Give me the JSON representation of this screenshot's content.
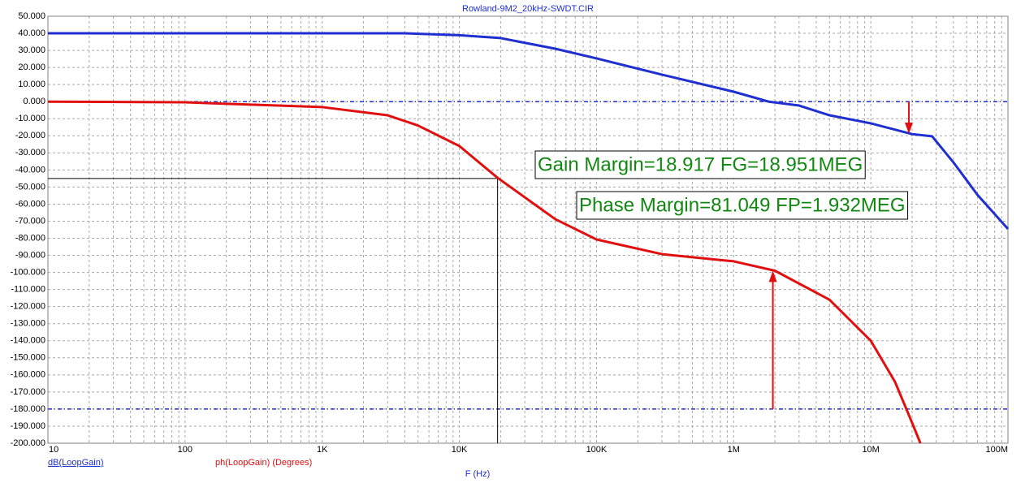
{
  "chart_data": {
    "type": "line",
    "title": "Rowland-9M2_20kHz-SWDT.CIR",
    "x_label": "F (Hz)",
    "log_x": true,
    "grid": true,
    "minor_grid": true,
    "xlim": [
      10,
      100000000
    ],
    "xticks": [
      10,
      100,
      {
        "value": 1000,
        "label": "1K"
      },
      {
        "value": 10000,
        "label": "10K"
      },
      {
        "value": 100000,
        "label": "100K"
      },
      {
        "value": 1000000,
        "label": "1M"
      },
      {
        "value": 10000000,
        "label": "10M"
      },
      {
        "value": 100000000,
        "label": "100M"
      }
    ],
    "ylim": [
      -200,
      50
    ],
    "yticks": [
      {
        "value": 50,
        "label": "50.000"
      },
      {
        "value": 40,
        "label": "40.000"
      },
      {
        "value": 30,
        "label": "30.000"
      },
      {
        "value": 20,
        "label": "20.000"
      },
      {
        "value": 10,
        "label": "10.000"
      },
      {
        "value": 0,
        "label": "0.000"
      },
      {
        "value": -10,
        "label": "-10.000"
      },
      {
        "value": -20,
        "label": "-20.000"
      },
      {
        "value": -30,
        "label": "-30.000"
      },
      {
        "value": -40,
        "label": "-40.000"
      },
      {
        "value": -50,
        "label": "-50.000"
      },
      {
        "value": -60,
        "label": "-60.000"
      },
      {
        "value": -70,
        "label": "-70.000"
      },
      {
        "value": -80,
        "label": "-80.000"
      },
      {
        "value": -90,
        "label": "-90.000"
      },
      {
        "value": -100,
        "label": "-100.000"
      },
      {
        "value": -110,
        "label": "-110.000"
      },
      {
        "value": -120,
        "label": "-120.000"
      },
      {
        "value": -130,
        "label": "-130.000"
      },
      {
        "value": -140,
        "label": "-140.000"
      },
      {
        "value": -150,
        "label": "-150.000"
      },
      {
        "value": -160,
        "label": "-160.000"
      },
      {
        "value": -170,
        "label": "-170.000"
      },
      {
        "value": -180,
        "label": "-180.000"
      },
      {
        "value": -190,
        "label": "-190.000"
      },
      {
        "value": -200,
        "label": "-200.000"
      }
    ],
    "series": [
      {
        "name": "dB(LoopGain)",
        "color": "#1f2fd0",
        "x": [
          10,
          100,
          1000,
          4000,
          10000,
          20000,
          50000,
          100000,
          300000,
          1000000,
          1800000,
          3000000,
          5000000,
          10000000,
          20000000,
          28000000,
          40000000,
          60000000,
          100000000
        ],
        "values": [
          40,
          40,
          40,
          40,
          38.9,
          37.2,
          31,
          25.3,
          15.8,
          5.8,
          0,
          -2.3,
          -8,
          -12.7,
          -19,
          -20.3,
          -35.5,
          -54.6,
          -74.5
        ]
      },
      {
        "name": "ph(LoopGain) (Degrees)",
        "color": "#e01010",
        "x": [
          10,
          100,
          1000,
          3000,
          5000,
          10000,
          19000,
          50000,
          100000,
          300000,
          1000000,
          2000000,
          5000000,
          10000000,
          15000000,
          20000000,
          23000000
        ],
        "values": [
          0,
          -0.4,
          -3.2,
          -8,
          -14,
          -26,
          -44.6,
          -68.8,
          -80.7,
          -89.3,
          -93.5,
          -99,
          -116,
          -140,
          -164,
          -188,
          -200
        ]
      }
    ],
    "hlines": [
      0,
      -180
    ],
    "cursor": {
      "x": 19000,
      "y": -45
    },
    "arrows": [
      {
        "x": 18951000,
        "from": 0,
        "to": -18.917
      },
      {
        "x": 1932000,
        "from": -180,
        "to": -98.951
      }
    ],
    "annotations": [
      "Gain Margin=18.917 FG=18.951MEG",
      "Phase Margin=81.049 FP=1.932MEG"
    ]
  }
}
